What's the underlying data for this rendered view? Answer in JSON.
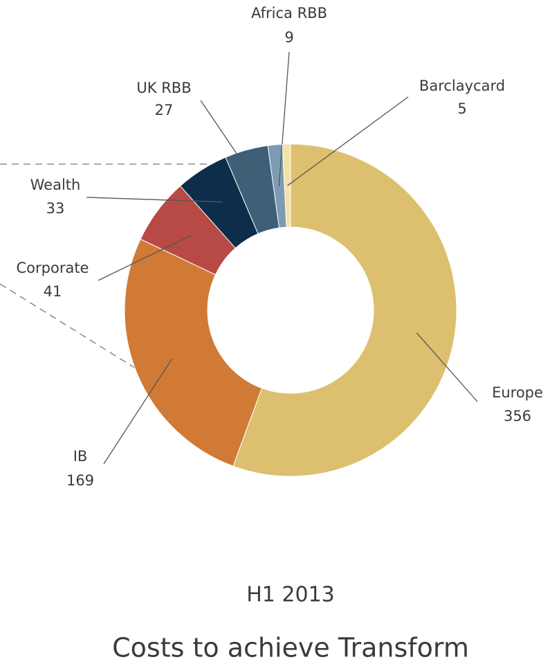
{
  "chart_data": {
    "type": "donut",
    "subtitle": "H1 2013",
    "title": "Costs to achieve Transform",
    "categories": [
      "Europe",
      "IB",
      "Corporate",
      "Wealth",
      "UK RBB",
      "Africa RBB",
      "Barclaycard"
    ],
    "values": [
      356,
      169,
      41,
      33,
      27,
      9,
      5
    ],
    "colors": [
      "#dcc070",
      "#d07a35",
      "#b84a45",
      "#0d2d4a",
      "#3d6078",
      "#7d9cb1",
      "#f5e1a6"
    ]
  }
}
